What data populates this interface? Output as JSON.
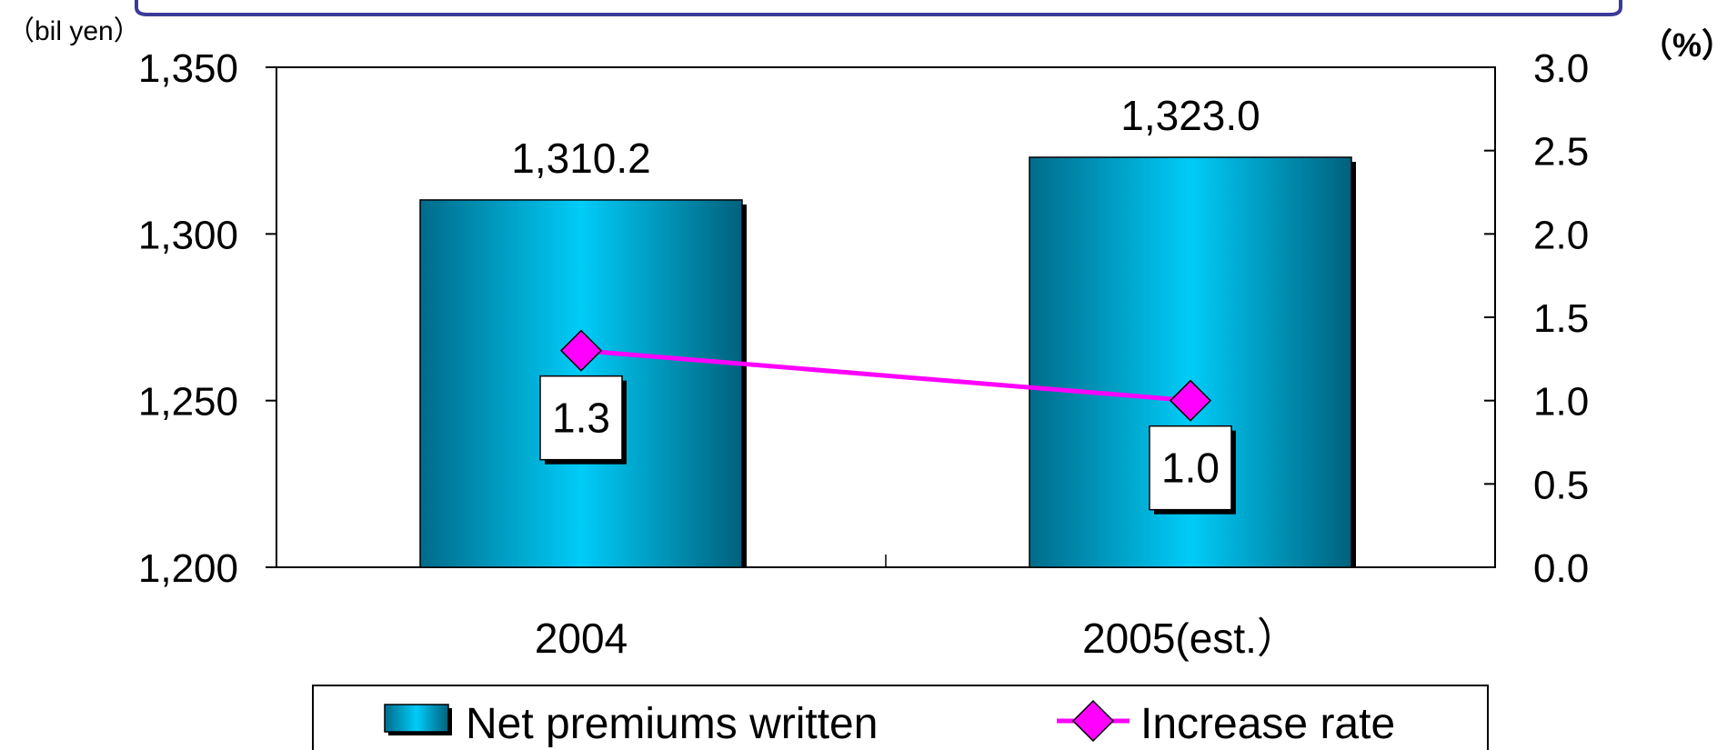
{
  "chart_data": {
    "type": "bar",
    "categories": [
      "2004",
      "2005(est.）"
    ],
    "left_axis": {
      "unit": "（bil yen）",
      "min": 1200,
      "max": 1350,
      "step": 50,
      "tick_labels": [
        "1,200",
        "1,250",
        "1,300",
        "1,350"
      ]
    },
    "right_axis": {
      "unit": "（%）",
      "min": 0.0,
      "max": 3.0,
      "step": 0.5,
      "tick_labels": [
        "0.0",
        "0.5",
        "1.0",
        "1.5",
        "2.0",
        "2.5",
        "3.0"
      ]
    },
    "series": [
      {
        "name": "Net premiums written",
        "type": "bar",
        "axis": "left",
        "values": [
          1310.2,
          1323.0
        ],
        "data_labels": [
          "1,310.2",
          "1,323.0"
        ],
        "color": "#00c8f5"
      },
      {
        "name": "Increase rate",
        "type": "line",
        "axis": "right",
        "values": [
          1.3,
          1.0
        ],
        "data_labels": [
          "1.3",
          "1.0"
        ],
        "color": "#ff00ff"
      }
    ],
    "legend_placement": "bottom",
    "grid": false
  }
}
